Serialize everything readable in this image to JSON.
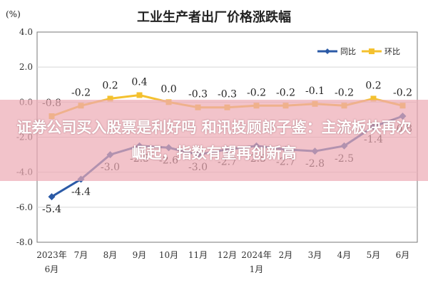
{
  "chart_data": {
    "type": "line",
    "title": "工业生产者出厂价格涨跌幅",
    "unit": "(%)",
    "categories": [
      "2023年6月",
      "7月",
      "8月",
      "9月",
      "10月",
      "11月",
      "12月",
      "2024年1月",
      "2月",
      "3月",
      "4月",
      "5月",
      "6月"
    ],
    "series": [
      {
        "name": "同比",
        "color": "#2b5aa6",
        "values": [
          -5.4,
          -4.4,
          -3.0,
          -2.5,
          -2.6,
          -3.0,
          -2.7,
          -2.5,
          -2.7,
          -2.8,
          -2.5,
          -1.4,
          -0.8
        ]
      },
      {
        "name": "环比",
        "color": "#f4c12f",
        "values": [
          -0.8,
          -0.2,
          0.2,
          0.4,
          0.0,
          -0.3,
          -0.3,
          -0.2,
          -0.2,
          -0.1,
          -0.2,
          0.2,
          -0.2
        ]
      }
    ],
    "ylim": [
      -8.0,
      4.0
    ],
    "yticks": [
      "4.0",
      "2.0",
      "0.0",
      "-2.0",
      "-4.0",
      "-6.0",
      "-8.0"
    ],
    "ytick_values": [
      4,
      2,
      0,
      -2,
      -4,
      -6,
      -8
    ],
    "xtick_lines": [
      [
        "2023年",
        "6月"
      ],
      [
        "7月"
      ],
      [
        "8月"
      ],
      [
        "9月"
      ],
      [
        "10月"
      ],
      [
        "11月"
      ],
      [
        "12月"
      ],
      [
        "2024年",
        "1月"
      ],
      [
        "2月"
      ],
      [
        "3月"
      ],
      [
        "4月"
      ],
      [
        "5月"
      ],
      [
        "6月"
      ]
    ],
    "data_labels": {
      "同比": [
        "-5.4",
        "-4.4",
        "-3.0",
        "-2.5",
        "-2.6",
        "-3.0",
        "-2.7",
        "-2.5",
        "-2.7",
        "-2.8",
        "-2.5",
        "-1.4",
        "-0.8"
      ],
      "环比": [
        "-0.8",
        "-0.2",
        "0.2",
        "0.4",
        "0.0",
        "-0.3",
        "-0.3",
        "-0.2",
        "-0.2",
        "-0.1",
        "-0.2",
        "0.2",
        "-0.2"
      ]
    },
    "legend": {
      "position": "top-right"
    },
    "grid": true
  },
  "overlay": {
    "text": "证券公司买入股票是利好吗 和讯投顾郎子鉴：主流板块再次崛起，指数有望再创新高",
    "background": "#eca4b4"
  }
}
